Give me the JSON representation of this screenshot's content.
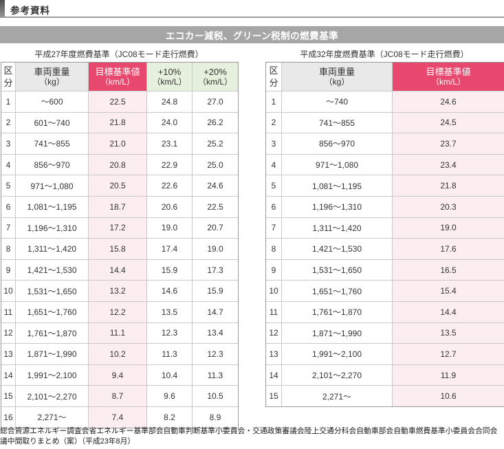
{
  "page": {
    "header_title": "参考資料",
    "banner_title": "エコカー減税、グリーン税制の燃費基準",
    "footnote": "総合資源エネルギー調査会省エネルギー基準部会自動車判断基準小委員会・交通政策審議会陸上交通分科会自動車部会自動車燃費基準小委員会合同会議中間取りまとめ（案）（平成23年8月）"
  },
  "colors": {
    "target_header_pink": "#e8486e",
    "target_cell_pink": "#fcedf0",
    "plus_header_green": "#e5f1dc",
    "weight_header_gray": "#e9e9e9",
    "banner_gray": "#a6a6a6",
    "outer_border": "#999999",
    "inner_border": "#c9c9c9"
  },
  "left_table": {
    "title": "平成27年度燃費基準（JC08モード走行燃費）",
    "headers": {
      "kubun": "区分",
      "weight": "車両重量",
      "weight_unit": "（kg）",
      "target": "目標基準値",
      "target_unit": "（km/L）",
      "plus10": "+10%",
      "plus10_unit": "（km/L）",
      "plus20": "+20%",
      "plus20_unit": "（km/L）"
    },
    "rows": [
      [
        "1",
        "～600",
        "22.5",
        "24.8",
        "27.0"
      ],
      [
        "2",
        "601～740",
        "21.8",
        "24.0",
        "26.2"
      ],
      [
        "3",
        "741～855",
        "21.0",
        "23.1",
        "25.2"
      ],
      [
        "4",
        "856～970",
        "20.8",
        "22.9",
        "25.0"
      ],
      [
        "5",
        "971～1,080",
        "20.5",
        "22.6",
        "24.6"
      ],
      [
        "6",
        "1,081～1,195",
        "18.7",
        "20.6",
        "22.5"
      ],
      [
        "7",
        "1,196～1,310",
        "17.2",
        "19.0",
        "20.7"
      ],
      [
        "8",
        "1,311～1,420",
        "15.8",
        "17.4",
        "19.0"
      ],
      [
        "9",
        "1,421～1,530",
        "14.4",
        "15.9",
        "17.3"
      ],
      [
        "10",
        "1,531～1,650",
        "13.2",
        "14.6",
        "15.9"
      ],
      [
        "11",
        "1,651～1,760",
        "12.2",
        "13.5",
        "14.7"
      ],
      [
        "12",
        "1,761～1,870",
        "11.1",
        "12.3",
        "13.4"
      ],
      [
        "13",
        "1,871～1,990",
        "10.2",
        "11.3",
        "12.3"
      ],
      [
        "14",
        "1,991～2,100",
        "9.4",
        "10.4",
        "11.3"
      ],
      [
        "15",
        "2,101～2,270",
        "8.7",
        "9.6",
        "10.5"
      ],
      [
        "16",
        "2,271～",
        "7.4",
        "8.2",
        "8.9"
      ]
    ]
  },
  "right_table": {
    "title": "平成32年度燃費基準（JC08モード走行燃費）",
    "headers": {
      "kubun": "区分",
      "weight": "車両重量",
      "weight_unit": "（kg）",
      "target": "目標基準値",
      "target_unit": "（km/L）"
    },
    "rows": [
      [
        "1",
        "～740",
        "24.6"
      ],
      [
        "2",
        "741～855",
        "24.5"
      ],
      [
        "3",
        "856～970",
        "23.7"
      ],
      [
        "4",
        "971～1,080",
        "23.4"
      ],
      [
        "5",
        "1,081～1,195",
        "21.8"
      ],
      [
        "6",
        "1,196～1,310",
        "20.3"
      ],
      [
        "7",
        "1,311～1,420",
        "19.0"
      ],
      [
        "8",
        "1,421～1,530",
        "17.6"
      ],
      [
        "9",
        "1,531～1,650",
        "16.5"
      ],
      [
        "10",
        "1,651～1,760",
        "15.4"
      ],
      [
        "11",
        "1,761～1,870",
        "14.4"
      ],
      [
        "12",
        "1,871～1,990",
        "13.5"
      ],
      [
        "13",
        "1,991～2,100",
        "12.7"
      ],
      [
        "14",
        "2,101～2,270",
        "11.9"
      ],
      [
        "15",
        "2,271～",
        "10.6"
      ]
    ]
  }
}
